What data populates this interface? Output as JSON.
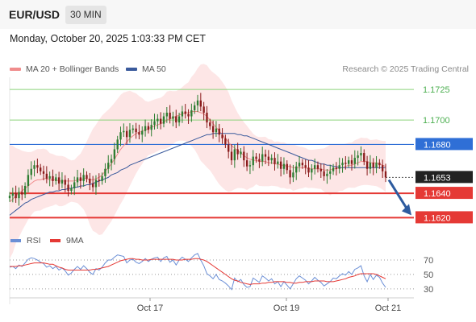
{
  "header": {
    "pair": "EUR/USD",
    "timeframe": "30 MIN"
  },
  "datetime": "Monday, October 20, 2025 1:03:33 PM CET",
  "copyright": "Research © 2025 Trading Central",
  "colors": {
    "ma20": "#f08c8c",
    "ma50": "#3a5a9c",
    "band": "#fde2e2",
    "green": "#8cd37a",
    "blue": "#2f6fd6",
    "red": "#e53935",
    "bull": "#2e7d32",
    "bear": "#8a1c1c",
    "rsi": "#6b8fd6",
    "ma9": "#e53935",
    "arrow": "#2d5b9f"
  },
  "chart_data": [
    {
      "type": "candlestick",
      "title": "",
      "legend": [
        "MA 20 + Bollinger Bands",
        "MA 50"
      ],
      "legend_placement": "top-left",
      "x_ticks": [
        "Oct 17",
        "Oct 19",
        "Oct 21"
      ],
      "ylim": [
        1.1615,
        1.1735
      ],
      "levels": [
        {
          "label": "1.1725",
          "value": 1.1725,
          "kind": "target"
        },
        {
          "label": "1.1700",
          "value": 1.17,
          "kind": "target"
        },
        {
          "label": "1.1680",
          "value": 1.168,
          "kind": "pivot"
        },
        {
          "label": "1.1653",
          "value": 1.1653,
          "kind": "last"
        },
        {
          "label": "1.1640",
          "value": 1.164,
          "kind": "support"
        },
        {
          "label": "1.1620",
          "value": 1.162,
          "kind": "support"
        }
      ],
      "forecast": {
        "from": 1.1651,
        "to": 1.1622,
        "direction": "down"
      },
      "closes": [
        1.1638,
        1.164,
        1.1636,
        1.1641,
        1.1639,
        1.1646,
        1.1655,
        1.166,
        1.1663,
        1.1661,
        1.1658,
        1.1656,
        1.1652,
        1.1654,
        1.165,
        1.1653,
        1.1648,
        1.1651,
        1.1647,
        1.1642,
        1.1644,
        1.1649,
        1.1653,
        1.165,
        1.1655,
        1.1652,
        1.1648,
        1.1645,
        1.1651,
        1.165,
        1.1654,
        1.166,
        1.1665,
        1.1668,
        1.1676,
        1.1684,
        1.169,
        1.1691,
        1.1686,
        1.1692,
        1.1693,
        1.169,
        1.1688,
        1.1691,
        1.1695,
        1.1692,
        1.1696,
        1.1699,
        1.1701,
        1.1697,
        1.1703,
        1.1706,
        1.1701,
        1.1703,
        1.1698,
        1.1703,
        1.1707,
        1.1705,
        1.1703,
        1.1708,
        1.1712,
        1.1716,
        1.1711,
        1.1706,
        1.1698,
        1.1695,
        1.169,
        1.1693,
        1.1688,
        1.1685,
        1.168,
        1.1674,
        1.1667,
        1.1676,
        1.1672,
        1.1674,
        1.1667,
        1.1662,
        1.1663,
        1.167,
        1.1668,
        1.1666,
        1.1672,
        1.167,
        1.1667,
        1.1669,
        1.1664,
        1.1666,
        1.166,
        1.1664,
        1.1659,
        1.1653,
        1.1657,
        1.1662,
        1.1665,
        1.1663,
        1.1661,
        1.1657,
        1.166,
        1.1663,
        1.166,
        1.1658,
        1.1654,
        1.1656,
        1.1658,
        1.1661,
        1.166,
        1.1663,
        1.1665,
        1.1664,
        1.1667,
        1.1664,
        1.1669,
        1.1671,
        1.1673,
        1.1666,
        1.166,
        1.1665,
        1.1661,
        1.1665,
        1.1663,
        1.1658,
        1.1653
      ],
      "ma20": [
        1.1633,
        1.1635,
        1.1638,
        1.164,
        1.1642,
        1.1644,
        1.1646,
        1.1648,
        1.165,
        1.1651,
        1.1651,
        1.1652,
        1.1652,
        1.1651,
        1.1651,
        1.1651,
        1.165,
        1.165,
        1.165,
        1.165,
        1.165,
        1.165,
        1.1651,
        1.1651,
        1.1652,
        1.1652,
        1.1651,
        1.1651,
        1.1652,
        1.1653,
        1.1655,
        1.1658,
        1.1661,
        1.1664,
        1.1668,
        1.1672,
        1.1676,
        1.1679,
        1.1682,
        1.1685,
        1.1687,
        1.1689,
        1.169,
        1.1691,
        1.1692,
        1.1693,
        1.1694,
        1.1695,
        1.1696,
        1.1697,
        1.1698,
        1.17,
        1.1701,
        1.1702,
        1.1703,
        1.1704,
        1.1705,
        1.1706,
        1.1706,
        1.1707,
        1.1707,
        1.1707,
        1.1706,
        1.1705,
        1.1703,
        1.17,
        1.1697,
        1.1694,
        1.1691,
        1.1688,
        1.1685,
        1.1682,
        1.1679,
        1.1677,
        1.1675,
        1.1673,
        1.1671,
        1.1669,
        1.1668,
        1.1667,
        1.1667,
        1.1666,
        1.1666,
        1.1666,
        1.1665,
        1.1665,
        1.1664,
        1.1664,
        1.1663,
        1.1663,
        1.1662,
        1.1662,
        1.1661,
        1.1661,
        1.1661,
        1.1661,
        1.1661,
        1.166,
        1.166,
        1.166,
        1.166,
        1.166,
        1.1659,
        1.1659,
        1.1659,
        1.166,
        1.166,
        1.1661,
        1.1661,
        1.1662,
        1.1663,
        1.1663,
        1.1664,
        1.1665,
        1.1666,
        1.1666,
        1.1666,
        1.1665,
        1.1665,
        1.1665,
        1.1664,
        1.1663,
        1.1662
      ],
      "ma50": [
        1.1622,
        1.1624,
        1.1626,
        1.1628,
        1.163,
        1.1632,
        1.1633,
        1.1635,
        1.1636,
        1.1637,
        1.1638,
        1.1639,
        1.164,
        1.1641,
        1.1641,
        1.1642,
        1.1642,
        1.1643,
        1.1643,
        1.1644,
        1.1644,
        1.1645,
        1.1645,
        1.1646,
        1.1646,
        1.1647,
        1.1647,
        1.1648,
        1.1649,
        1.165,
        1.1651,
        1.1652,
        1.1653,
        1.1655,
        1.1656,
        1.1657,
        1.1659,
        1.166,
        1.1661,
        1.1663,
        1.1664,
        1.1665,
        1.1666,
        1.1667,
        1.1668,
        1.1669,
        1.167,
        1.1671,
        1.1672,
        1.1673,
        1.1674,
        1.1675,
        1.1676,
        1.1677,
        1.1678,
        1.1679,
        1.168,
        1.1681,
        1.1682,
        1.1683,
        1.1684,
        1.1685,
        1.1686,
        1.1687,
        1.1688,
        1.1688,
        1.1689,
        1.1689,
        1.1689,
        1.1689,
        1.1689,
        1.1689,
        1.1689,
        1.1689,
        1.1688,
        1.1688,
        1.1687,
        1.1687,
        1.1686,
        1.1685,
        1.1684,
        1.1683,
        1.1682,
        1.1681,
        1.168,
        1.1679,
        1.1678,
        1.1677,
        1.1676,
        1.1675,
        1.1674,
        1.1673,
        1.1672,
        1.1671,
        1.167,
        1.1669,
        1.1668,
        1.1667,
        1.1667,
        1.1666,
        1.1665,
        1.1664,
        1.1664,
        1.1663,
        1.1663,
        1.1662,
        1.1662,
        1.1661,
        1.1661,
        1.1661,
        1.1661,
        1.1661,
        1.1661,
        1.1661,
        1.1661,
        1.1661,
        1.1661,
        1.1661,
        1.1661,
        1.1661,
        1.1661,
        1.1661,
        1.1661
      ]
    },
    {
      "type": "line",
      "title": "",
      "legend": [
        "RSI",
        "9MA"
      ],
      "legend_placement": "top-left",
      "y_ticks": [
        "70",
        "50",
        "30"
      ],
      "ylim": [
        22,
        80
      ],
      "rsi": [
        60,
        61,
        58,
        63,
        61,
        66,
        71,
        73,
        72,
        70,
        67,
        65,
        60,
        62,
        58,
        61,
        56,
        59,
        55,
        49,
        52,
        57,
        61,
        57,
        62,
        58,
        53,
        50,
        58,
        56,
        60,
        66,
        70,
        70,
        74,
        77,
        76,
        75,
        66,
        70,
        71,
        67,
        65,
        68,
        72,
        68,
        71,
        73,
        74,
        68,
        73,
        75,
        67,
        70,
        63,
        70,
        74,
        71,
        68,
        73,
        77,
        79,
        70,
        62,
        51,
        48,
        44,
        50,
        43,
        41,
        38,
        34,
        29,
        45,
        40,
        43,
        36,
        32,
        33,
        45,
        42,
        39,
        48,
        45,
        41,
        44,
        37,
        40,
        33,
        40,
        35,
        30,
        37,
        44,
        48,
        45,
        42,
        37,
        41,
        46,
        42,
        39,
        34,
        37,
        40,
        45,
        44,
        48,
        51,
        49,
        54,
        50,
        57,
        59,
        62,
        48,
        40,
        50,
        43,
        49,
        46,
        38,
        32
      ],
      "ma9": [
        61,
        61,
        61,
        62,
        62,
        63,
        64,
        65,
        66,
        66,
        66,
        66,
        65,
        64,
        64,
        62,
        60,
        59,
        57,
        56,
        56,
        56,
        56,
        56,
        56,
        56,
        56,
        57,
        57,
        58,
        59,
        60,
        61,
        63,
        65,
        67,
        69,
        70,
        71,
        72,
        72,
        71,
        71,
        70,
        70,
        70,
        71,
        71,
        71,
        71,
        71,
        71,
        71,
        71,
        70,
        70,
        70,
        71,
        71,
        71,
        72,
        72,
        71,
        70,
        68,
        65,
        62,
        59,
        56,
        53,
        50,
        47,
        44,
        42,
        41,
        39,
        38,
        37,
        36,
        37,
        37,
        37,
        38,
        38,
        39,
        39,
        40,
        40,
        40,
        40,
        39,
        39,
        38,
        38,
        39,
        39,
        40,
        40,
        40,
        41,
        41,
        41,
        41,
        40,
        40,
        40,
        41,
        42,
        43,
        44,
        46,
        47,
        48,
        50,
        51,
        51,
        51,
        51,
        51,
        50,
        48,
        46,
        44
      ]
    }
  ]
}
